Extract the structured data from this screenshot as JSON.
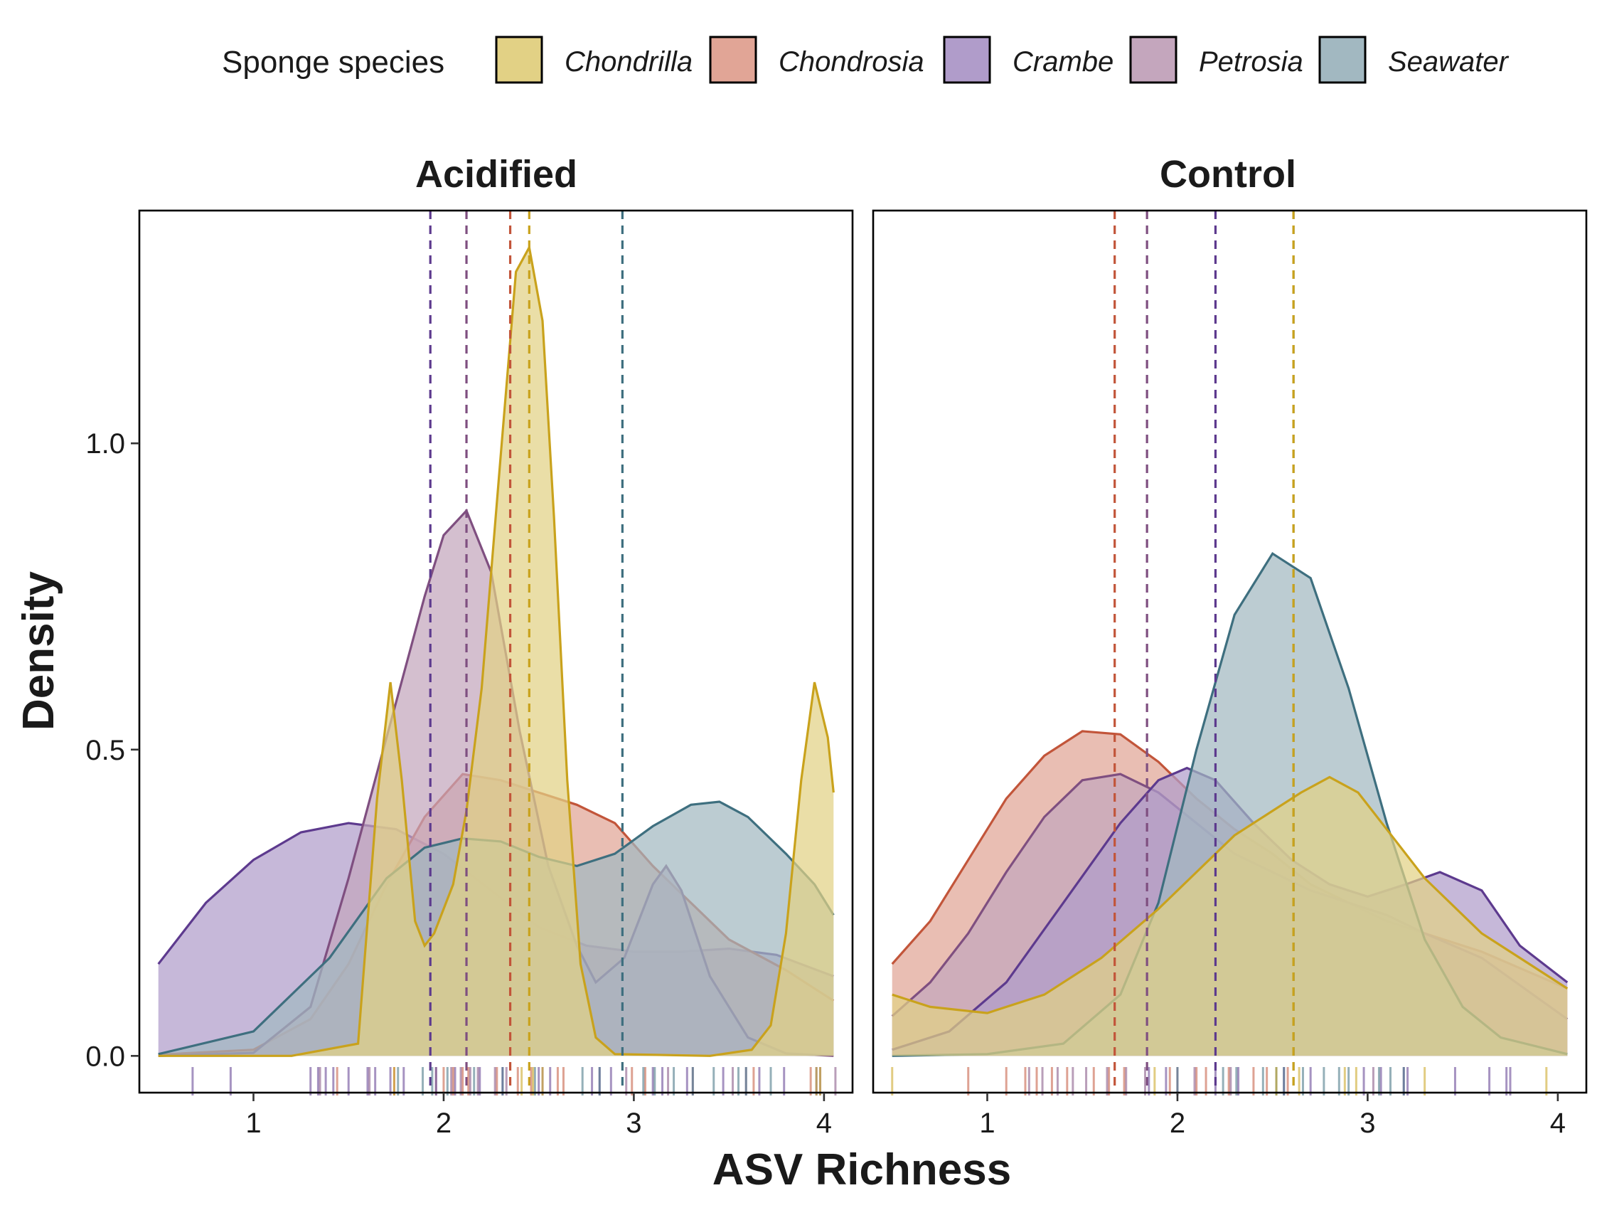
{
  "chart_data": {
    "type": "area",
    "xlabel": "ASV Richness",
    "ylabel": "Density",
    "xlim": [
      0.4,
      4.15
    ],
    "ylim": [
      -0.06,
      1.38
    ],
    "x_ticks": [
      "1",
      "2",
      "3",
      "4"
    ],
    "y_ticks": [
      "0.0",
      "0.5",
      "1.0"
    ],
    "grid": false,
    "legend_position": "top",
    "legend": {
      "title": "Sponge species",
      "items": [
        {
          "label": "Chondrilla",
          "fill": "#E2D185",
          "line": "#C9A21C"
        },
        {
          "label": "Chondrosia",
          "fill": "#E1A596",
          "line": "#C2553A"
        },
        {
          "label": "Crambe",
          "fill": "#B09CCA",
          "line": "#5D3A8E"
        },
        {
          "label": "Petrosia",
          "fill": "#C4A6BD",
          "line": "#7F4F80"
        },
        {
          "label": "Seawater",
          "fill": "#A2B8C1",
          "line": "#3E6F7F"
        }
      ]
    },
    "panels": [
      {
        "title": "Acidified",
        "series": [
          {
            "name": "Crambe",
            "mean": 1.93,
            "points": [
              [
                0.5,
                0.15
              ],
              [
                0.75,
                0.25
              ],
              [
                1.0,
                0.32
              ],
              [
                1.25,
                0.365
              ],
              [
                1.5,
                0.38
              ],
              [
                1.75,
                0.37
              ],
              [
                2.0,
                0.33
              ],
              [
                2.25,
                0.27
              ],
              [
                2.5,
                0.21
              ],
              [
                2.75,
                0.18
              ],
              [
                3.0,
                0.17
              ],
              [
                3.25,
                0.17
              ],
              [
                3.5,
                0.175
              ],
              [
                3.75,
                0.165
              ],
              [
                4.05,
                0.13
              ]
            ],
            "rug": [
              0.68,
              0.88,
              1.3,
              1.34,
              1.38,
              1.42,
              1.5,
              1.6,
              1.64,
              1.72,
              1.79,
              1.96,
              2.06,
              2.19,
              2.31,
              2.5,
              2.56,
              2.78,
              2.82,
              2.88,
              3.1,
              3.15,
              3.28,
              3.47,
              3.66,
              3.79,
              3.96
            ]
          },
          {
            "name": "Chondrosia",
            "mean": 2.35,
            "points": [
              [
                0.5,
                0.002
              ],
              [
                1.0,
                0.01
              ],
              [
                1.3,
                0.06
              ],
              [
                1.5,
                0.15
              ],
              [
                1.7,
                0.28
              ],
              [
                1.9,
                0.39
              ],
              [
                2.1,
                0.46
              ],
              [
                2.3,
                0.45
              ],
              [
                2.5,
                0.43
              ],
              [
                2.7,
                0.41
              ],
              [
                2.9,
                0.38
              ],
              [
                3.1,
                0.31
              ],
              [
                3.3,
                0.25
              ],
              [
                3.5,
                0.19
              ],
              [
                3.8,
                0.14
              ],
              [
                4.05,
                0.09
              ]
            ],
            "rug": [
              1.44,
              1.74,
              2.0,
              2.05,
              2.1,
              2.13,
              2.28,
              2.39,
              2.46,
              2.6,
              2.63,
              2.99,
              3.06,
              3.63,
              3.93
            ]
          },
          {
            "name": "Petrosia",
            "mean": 2.12,
            "points": [
              [
                0.5,
                0.0
              ],
              [
                1.0,
                0.005
              ],
              [
                1.3,
                0.08
              ],
              [
                1.5,
                0.29
              ],
              [
                1.7,
                0.52
              ],
              [
                1.9,
                0.75
              ],
              [
                2.0,
                0.85
              ],
              [
                2.12,
                0.89
              ],
              [
                2.25,
                0.79
              ],
              [
                2.4,
                0.53
              ],
              [
                2.55,
                0.31
              ],
              [
                2.7,
                0.18
              ],
              [
                2.8,
                0.12
              ],
              [
                2.95,
                0.16
              ],
              [
                3.1,
                0.28
              ],
              [
                3.17,
                0.31
              ],
              [
                3.25,
                0.27
              ],
              [
                3.4,
                0.13
              ],
              [
                3.6,
                0.03
              ],
              [
                3.8,
                0.004
              ],
              [
                4.05,
                0.0
              ]
            ],
            "rug": [
              1.35,
              1.61,
              1.96,
              2.04,
              2.09,
              2.14,
              2.18,
              2.27,
              2.33,
              2.52,
              2.96,
              3.18,
              3.31,
              3.52,
              3.59,
              3.98,
              4.06
            ]
          },
          {
            "name": "Seawater",
            "mean": 2.94,
            "points": [
              [
                0.5,
                0.003
              ],
              [
                1.0,
                0.04
              ],
              [
                1.4,
                0.16
              ],
              [
                1.7,
                0.29
              ],
              [
                1.9,
                0.34
              ],
              [
                2.1,
                0.355
              ],
              [
                2.3,
                0.35
              ],
              [
                2.5,
                0.325
              ],
              [
                2.7,
                0.31
              ],
              [
                2.9,
                0.33
              ],
              [
                3.1,
                0.375
              ],
              [
                3.3,
                0.41
              ],
              [
                3.45,
                0.415
              ],
              [
                3.6,
                0.39
              ],
              [
                3.8,
                0.33
              ],
              [
                3.95,
                0.28
              ],
              [
                4.05,
                0.23
              ]
            ],
            "rug": [
              1.76,
              1.89,
              1.94,
              2.02,
              2.16,
              2.31,
              2.48,
              2.73,
              2.82,
              3.05,
              3.11,
              3.21,
              3.31,
              3.42,
              3.55,
              3.59,
              3.72
            ]
          },
          {
            "name": "Chondrilla",
            "mean": 2.45,
            "points": [
              [
                0.5,
                0.0
              ],
              [
                1.2,
                0.0
              ],
              [
                1.55,
                0.02
              ],
              [
                1.65,
                0.42
              ],
              [
                1.72,
                0.61
              ],
              [
                1.78,
                0.45
              ],
              [
                1.85,
                0.22
              ],
              [
                1.9,
                0.18
              ],
              [
                1.95,
                0.2
              ],
              [
                2.05,
                0.28
              ],
              [
                2.12,
                0.4
              ],
              [
                2.2,
                0.6
              ],
              [
                2.3,
                0.98
              ],
              [
                2.38,
                1.28
              ],
              [
                2.45,
                1.32
              ],
              [
                2.52,
                1.2
              ],
              [
                2.58,
                0.88
              ],
              [
                2.65,
                0.45
              ],
              [
                2.72,
                0.15
              ],
              [
                2.8,
                0.03
              ],
              [
                2.9,
                0.003
              ],
              [
                3.4,
                0.0
              ],
              [
                3.62,
                0.01
              ],
              [
                3.72,
                0.05
              ],
              [
                3.8,
                0.2
              ],
              [
                3.88,
                0.45
              ],
              [
                3.95,
                0.61
              ],
              [
                4.02,
                0.52
              ],
              [
                4.05,
                0.43
              ]
            ],
            "rug": [
              1.74,
              2.41,
              2.47,
              2.52,
              3.96,
              3.98
            ]
          }
        ]
      },
      {
        "title": "Control",
        "series": [
          {
            "name": "Chondrosia",
            "mean": 1.67,
            "points": [
              [
                0.5,
                0.15
              ],
              [
                0.7,
                0.22
              ],
              [
                0.9,
                0.32
              ],
              [
                1.1,
                0.42
              ],
              [
                1.3,
                0.49
              ],
              [
                1.5,
                0.53
              ],
              [
                1.7,
                0.525
              ],
              [
                1.9,
                0.48
              ],
              [
                2.1,
                0.42
              ],
              [
                2.3,
                0.37
              ],
              [
                2.5,
                0.33
              ],
              [
                2.7,
                0.28
              ],
              [
                2.9,
                0.25
              ],
              [
                3.1,
                0.22
              ],
              [
                3.3,
                0.2
              ],
              [
                3.6,
                0.17
              ],
              [
                4.05,
                0.11
              ]
            ],
            "rug": [
              0.9,
              1.1,
              1.2,
              1.26,
              1.34,
              1.42,
              1.56,
              1.64,
              1.72,
              1.96,
              2.1,
              2.15,
              2.27,
              2.4,
              2.47,
              2.58
            ]
          },
          {
            "name": "Petrosia",
            "mean": 1.84,
            "points": [
              [
                0.5,
                0.065
              ],
              [
                0.7,
                0.12
              ],
              [
                0.9,
                0.2
              ],
              [
                1.1,
                0.3
              ],
              [
                1.3,
                0.39
              ],
              [
                1.5,
                0.45
              ],
              [
                1.7,
                0.46
              ],
              [
                1.9,
                0.43
              ],
              [
                2.1,
                0.38
              ],
              [
                2.3,
                0.33
              ],
              [
                2.5,
                0.3
              ],
              [
                2.7,
                0.27
              ],
              [
                2.9,
                0.25
              ],
              [
                3.1,
                0.23
              ],
              [
                3.3,
                0.2
              ],
              [
                3.6,
                0.16
              ],
              [
                4.05,
                0.06
              ]
            ],
            "rug": [
              1.22,
              1.29,
              1.37,
              1.45,
              1.52,
              1.63,
              1.73,
              1.83,
              2.0,
              2.09,
              2.28,
              3.03
            ]
          },
          {
            "name": "Crambe",
            "mean": 2.2,
            "points": [
              [
                0.5,
                0.01
              ],
              [
                0.8,
                0.04
              ],
              [
                1.1,
                0.12
              ],
              [
                1.4,
                0.25
              ],
              [
                1.7,
                0.38
              ],
              [
                1.9,
                0.45
              ],
              [
                2.05,
                0.47
              ],
              [
                2.2,
                0.45
              ],
              [
                2.4,
                0.38
              ],
              [
                2.6,
                0.32
              ],
              [
                2.8,
                0.28
              ],
              [
                3.0,
                0.26
              ],
              [
                3.2,
                0.28
              ],
              [
                3.38,
                0.3
              ],
              [
                3.6,
                0.27
              ],
              [
                3.8,
                0.18
              ],
              [
                4.05,
                0.12
              ]
            ],
            "rug": [
              1.85,
              1.94,
              2.2,
              2.32,
              2.56,
              2.7,
              2.98,
              3.07,
              3.19,
              3.21,
              3.46,
              3.64,
              3.73,
              3.75
            ]
          },
          {
            "name": "Seawater",
            "mean": 2.61,
            "points": [
              [
                0.5,
                0.0
              ],
              [
                1.0,
                0.003
              ],
              [
                1.4,
                0.02
              ],
              [
                1.7,
                0.1
              ],
              [
                1.9,
                0.25
              ],
              [
                2.1,
                0.5
              ],
              [
                2.3,
                0.72
              ],
              [
                2.5,
                0.82
              ],
              [
                2.7,
                0.78
              ],
              [
                2.9,
                0.6
              ],
              [
                3.1,
                0.38
              ],
              [
                3.3,
                0.19
              ],
              [
                3.5,
                0.08
              ],
              [
                3.7,
                0.03
              ],
              [
                4.05,
                0.003
              ]
            ],
            "rug": [
              2.0,
              2.24,
              2.31,
              2.45,
              2.52,
              2.56,
              2.66,
              2.77,
              2.85,
              2.9,
              3.06,
              3.12,
              3.19
            ]
          },
          {
            "name": "Chondrilla",
            "mean": 2.61,
            "points": [
              [
                0.5,
                0.1
              ],
              [
                0.7,
                0.08
              ],
              [
                1.0,
                0.07
              ],
              [
                1.3,
                0.1
              ],
              [
                1.6,
                0.16
              ],
              [
                1.9,
                0.24
              ],
              [
                2.1,
                0.3
              ],
              [
                2.3,
                0.36
              ],
              [
                2.5,
                0.4
              ],
              [
                2.65,
                0.43
              ],
              [
                2.8,
                0.455
              ],
              [
                2.95,
                0.43
              ],
              [
                3.1,
                0.37
              ],
              [
                3.3,
                0.29
              ],
              [
                3.6,
                0.2
              ],
              [
                4.05,
                0.11
              ]
            ],
            "rug": [
              0.5,
              1.88,
              2.52,
              2.64,
              2.88,
              2.94,
              3.3,
              3.94
            ]
          }
        ]
      }
    ]
  }
}
